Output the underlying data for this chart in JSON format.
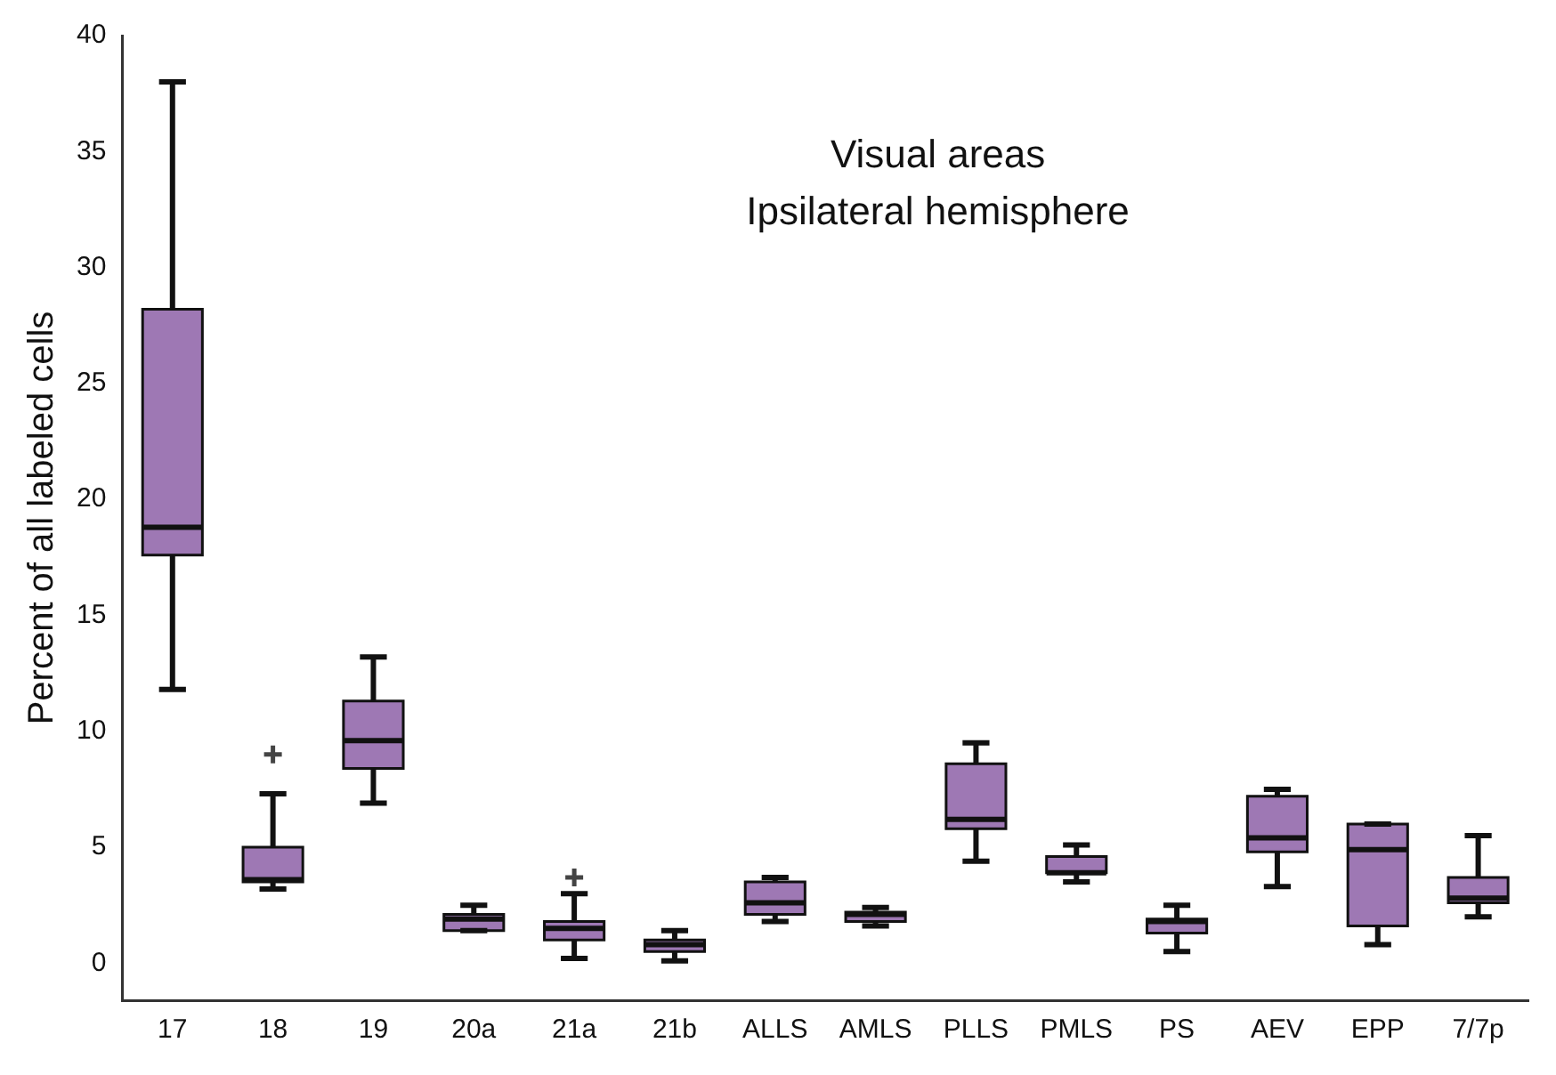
{
  "chart_data": {
    "type": "box",
    "title": "Visual areas",
    "subtitle": "Ipsilateral hemisphere",
    "ylabel": "Percent of all labeled cells",
    "categories": [
      "17",
      "18",
      "19",
      "20a",
      "21a",
      "21b",
      "ALLS",
      "AMLS",
      "PLLS",
      "PMLS",
      "PS",
      "AEV",
      "EPP",
      "7/7p"
    ],
    "color": "#9e78b4",
    "boxes": [
      {
        "low": 11.8,
        "q1": 17.6,
        "median": 18.8,
        "q3": 28.2,
        "high": 38.0
      },
      {
        "low": 3.2,
        "q1": 3.5,
        "median": 3.6,
        "q3": 5.0,
        "high": 7.3,
        "outliers": [
          9.0
        ]
      },
      {
        "low": 6.9,
        "q1": 8.4,
        "median": 9.6,
        "q3": 11.3,
        "high": 13.2
      },
      {
        "low": 1.4,
        "q1": 1.4,
        "median": 1.9,
        "q3": 2.1,
        "high": 2.5
      },
      {
        "low": 0.2,
        "q1": 1.0,
        "median": 1.5,
        "q3": 1.8,
        "high": 3.0,
        "outliers": [
          3.7
        ]
      },
      {
        "low": 0.1,
        "q1": 0.5,
        "median": 0.8,
        "q3": 1.0,
        "high": 1.4
      },
      {
        "low": 1.8,
        "q1": 2.1,
        "median": 2.6,
        "q3": 3.5,
        "high": 3.7
      },
      {
        "low": 1.6,
        "q1": 1.8,
        "median": 2.1,
        "q3": 2.2,
        "high": 2.4
      },
      {
        "low": 4.4,
        "q1": 5.8,
        "median": 6.2,
        "q3": 8.6,
        "high": 9.5
      },
      {
        "low": 3.5,
        "q1": 3.9,
        "median": 3.9,
        "q3": 4.6,
        "high": 5.1
      },
      {
        "low": 0.5,
        "q1": 1.3,
        "median": 1.8,
        "q3": 1.9,
        "high": 2.5
      },
      {
        "low": 3.3,
        "q1": 4.8,
        "median": 5.4,
        "q3": 7.2,
        "high": 7.5
      },
      {
        "low": 0.8,
        "q1": 1.6,
        "median": 4.9,
        "q3": 6.0,
        "high": 6.0
      },
      {
        "low": 2.0,
        "q1": 2.6,
        "median": 2.8,
        "q3": 3.7,
        "high": 5.5
      }
    ],
    "ylim": [
      -1.6,
      40
    ],
    "yticks": [
      0,
      5,
      10,
      15,
      20,
      25,
      30,
      35,
      40
    ],
    "grid": false,
    "legend": false,
    "marker": "cross"
  }
}
